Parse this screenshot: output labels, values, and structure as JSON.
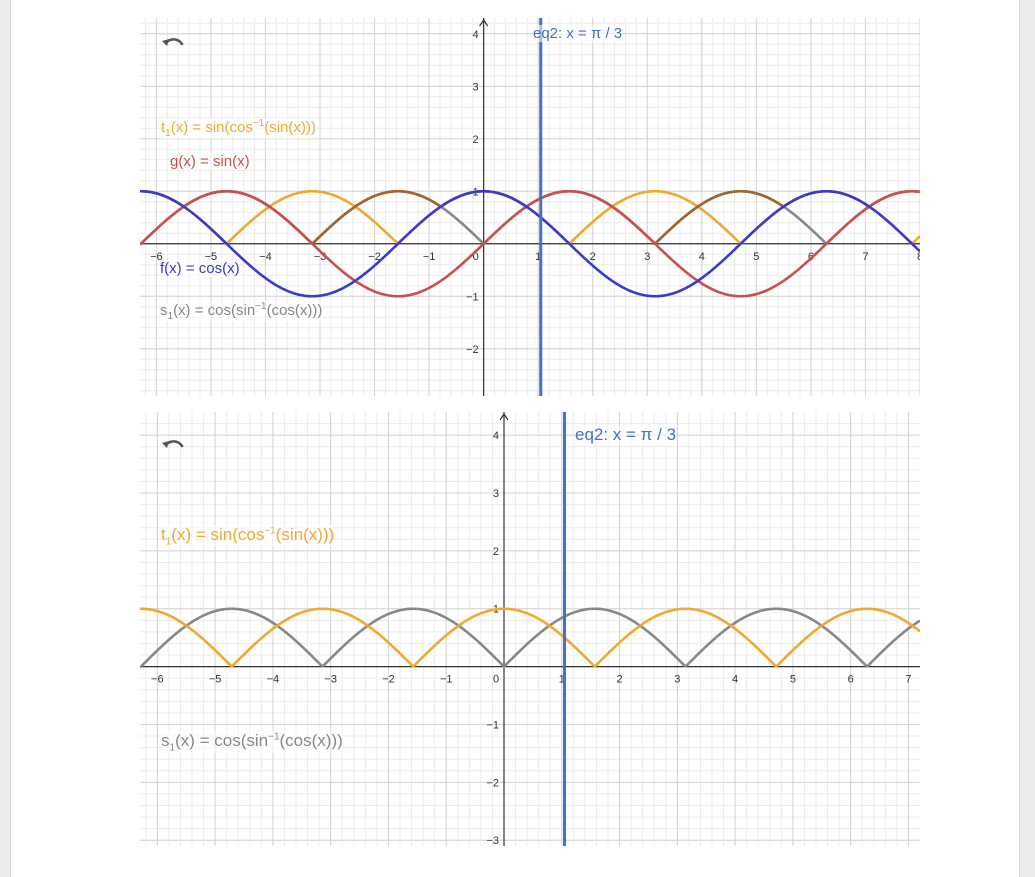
{
  "colors": {
    "t1": "#f0a830",
    "g": "#c85050",
    "f": "#3a3ad0",
    "s1": "#888888",
    "h": "#a0662a",
    "eq2": "#4472c4",
    "grid_minor": "#ececec",
    "grid_major": "#d4d4d4",
    "axis": "#333333"
  },
  "graphs": [
    {
      "undo_icon": "undo-icon",
      "labels": {
        "t1": {
          "name": "t",
          "sub": "1",
          "pre": "(x) = sin(cos",
          "sup": "−1",
          "post": "(sin(x)))"
        },
        "g": {
          "text": "g(x) = sin(x)"
        },
        "f": {
          "text": "f(x) = cos(x)"
        },
        "s1": {
          "name": "s",
          "sub": "1",
          "pre": "(x) = cos(sin",
          "sup": "−1",
          "post": "(cos(x)))"
        },
        "eq2": "eq2: x = π / 3"
      },
      "x_ticks": [
        "−6",
        "−5",
        "−4",
        "−3",
        "−2",
        "−1",
        "0",
        "1",
        "2",
        "3",
        "4",
        "5",
        "6",
        "7",
        "8"
      ],
      "y_ticks": [
        "4",
        "3",
        "2",
        "1",
        "−1",
        "−2"
      ]
    },
    {
      "undo_icon": "undo-icon",
      "labels": {
        "t1": {
          "name": "t",
          "sub": "1",
          "pre": "(x) = sin(cos",
          "sup": "−1",
          "post": "(sin(x)))"
        },
        "s1": {
          "name": "s",
          "sub": "1",
          "pre": "(x) = cos(sin",
          "sup": "−1",
          "post": "(cos(x)))"
        },
        "eq2": "eq2: x = π / 3"
      },
      "x_ticks": [
        "−6",
        "−5",
        "−4",
        "−3",
        "−2",
        "−1",
        "0",
        "1",
        "2",
        "3",
        "4",
        "5",
        "6",
        "7"
      ],
      "y_ticks": [
        "4",
        "3",
        "2",
        "1",
        "−1",
        "−2",
        "−3"
      ]
    }
  ],
  "chart_data": [
    {
      "type": "line",
      "xlim": [
        -6.3,
        8.0
      ],
      "ylim": [
        -2.9,
        4.3
      ],
      "grid": true,
      "series": [
        {
          "key": "t1",
          "name": "t₁(x) = sin(cos⁻¹(sin(x)))",
          "expr": "abs(cos(x))"
        },
        {
          "key": "s1",
          "name": "s₁(x) = cos(sin⁻¹(cos(x)))",
          "expr": "abs(sin(x))"
        },
        {
          "key": "h",
          "expr": "max(cos(x), abs(sin(x)))"
        },
        {
          "key": "g",
          "name": "g(x) = sin(x)",
          "expr": "sin(x)"
        },
        {
          "key": "f",
          "name": "f(x) = cos(x)",
          "expr": "cos(x)"
        }
      ],
      "vertical_lines": [
        {
          "key": "eq2",
          "name": "eq2: x = π / 3",
          "x": 1.0472
        }
      ]
    },
    {
      "type": "line",
      "xlim": [
        -6.3,
        7.2
      ],
      "ylim": [
        -3.1,
        4.4
      ],
      "grid": true,
      "series": [
        {
          "key": "s1",
          "name": "s₁(x) = cos(sin⁻¹(cos(x)))",
          "expr": "abs(sin(x))"
        },
        {
          "key": "t1",
          "name": "t₁(x) = sin(cos⁻¹(sin(x)))",
          "expr": "abs(cos(x))"
        }
      ],
      "vertical_lines": [
        {
          "key": "eq2",
          "name": "eq2: x = π / 3",
          "x": 1.0472
        }
      ]
    }
  ]
}
